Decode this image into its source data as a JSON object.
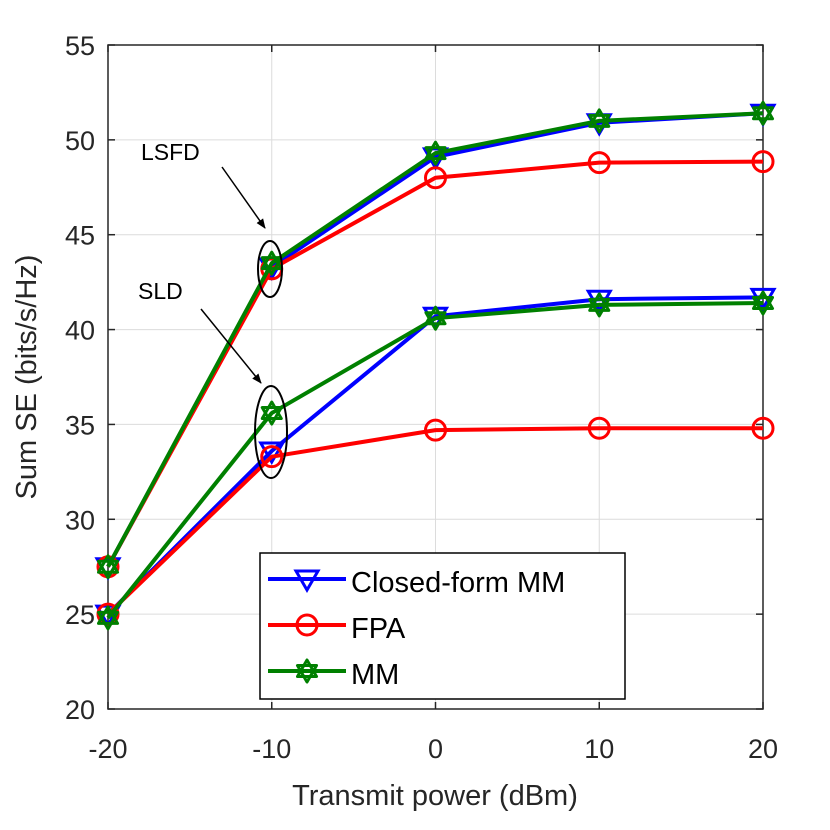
{
  "chart_data": {
    "type": "line",
    "xlabel": "Transmit power (dBm)",
    "ylabel": "Sum SE (bits/s/Hz)",
    "xlim": [
      -20,
      20
    ],
    "ylim": [
      20,
      55
    ],
    "xticks": [
      -20,
      -10,
      0,
      10,
      20
    ],
    "yticks": [
      20,
      25,
      30,
      35,
      40,
      45,
      50,
      55
    ],
    "x": [
      -20,
      -10,
      0,
      10,
      20
    ],
    "grid": true,
    "legend_position": "bottom-center",
    "series": [
      {
        "name": "Closed-form MM",
        "group": "LSFD",
        "color": "#0000ff",
        "marker": "triangle-down",
        "values": [
          27.5,
          43.3,
          49.1,
          50.9,
          51.4
        ]
      },
      {
        "name": "FPA",
        "group": "LSFD",
        "color": "#ff0000",
        "marker": "circle",
        "values": [
          27.5,
          43.2,
          48.0,
          48.8,
          48.85
        ]
      },
      {
        "name": "MM",
        "group": "LSFD",
        "color": "#008000",
        "marker": "hexagram",
        "values": [
          27.5,
          43.5,
          49.3,
          51.0,
          51.4
        ]
      },
      {
        "name": "Closed-form MM",
        "group": "SLD",
        "color": "#0000ff",
        "marker": "triangle-down",
        "values": [
          25.0,
          33.6,
          40.7,
          41.6,
          41.7
        ]
      },
      {
        "name": "FPA",
        "group": "SLD",
        "color": "#ff0000",
        "marker": "circle",
        "values": [
          25.0,
          33.3,
          34.7,
          34.8,
          34.8
        ]
      },
      {
        "name": "MM",
        "group": "SLD",
        "color": "#008000",
        "marker": "hexagram",
        "values": [
          24.8,
          35.6,
          40.6,
          41.3,
          41.4
        ]
      }
    ],
    "legend": [
      "Closed-form MM",
      "FPA",
      "MM"
    ],
    "annotations": [
      {
        "text": "LSFD",
        "target_x": -10,
        "target_y": 43.3
      },
      {
        "text": "SLD",
        "target_x": -10,
        "target_y": 34.5
      }
    ]
  }
}
